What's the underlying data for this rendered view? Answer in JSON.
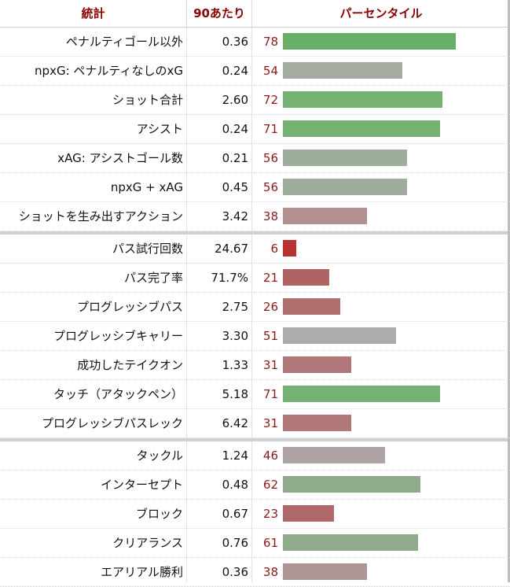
{
  "header": {
    "stat_label": "統計",
    "per90_label": "90あたり",
    "percentile_label": "パーセンタイル"
  },
  "chart_data": {
    "type": "bar",
    "orientation": "horizontal",
    "xlim": [
      0,
      100
    ],
    "groups": [
      {
        "rows": [
          {
            "label": "ペナルティゴール以外",
            "value": "0.36",
            "percentile": 78,
            "color": "#6aaf69"
          },
          {
            "label": "npxG: ペナルティなしのxG",
            "value": "0.24",
            "percentile": 54,
            "color": "#a4aba1"
          },
          {
            "label": "ショット合計",
            "value": "2.60",
            "percentile": 72,
            "color": "#76b174"
          },
          {
            "label": "アシスト",
            "value": "0.24",
            "percentile": 71,
            "color": "#76b174"
          },
          {
            "label": "xAG: アシストゴール数",
            "value": "0.21",
            "percentile": 56,
            "color": "#9fae9c"
          },
          {
            "label": "npxG + xAG",
            "value": "0.45",
            "percentile": 56,
            "color": "#9fae9c"
          },
          {
            "label": "ショットを生み出すアクション",
            "value": "3.42",
            "percentile": 38,
            "color": "#b38f8f"
          }
        ]
      },
      {
        "rows": [
          {
            "label": "パス試行回数",
            "value": "24.67",
            "percentile": 6,
            "color": "#b83232"
          },
          {
            "label": "パス完了率",
            "value": "71.7%",
            "percentile": 21,
            "color": "#b06363"
          },
          {
            "label": "プログレッシブパス",
            "value": "2.75",
            "percentile": 26,
            "color": "#b06f6f"
          },
          {
            "label": "プログレッシブキャリー",
            "value": "3.30",
            "percentile": 51,
            "color": "#acacac"
          },
          {
            "label": "成功したテイクオン",
            "value": "1.33",
            "percentile": 31,
            "color": "#b07878"
          },
          {
            "label": "タッチ（アタックペン）",
            "value": "5.18",
            "percentile": 71,
            "color": "#76b174"
          },
          {
            "label": "プログレッシブパスレック",
            "value": "6.42",
            "percentile": 31,
            "color": "#b07878"
          }
        ]
      },
      {
        "rows": [
          {
            "label": "タックル",
            "value": "1.24",
            "percentile": 46,
            "color": "#afa3a3"
          },
          {
            "label": "インターセプト",
            "value": "0.48",
            "percentile": 62,
            "color": "#8fab8c"
          },
          {
            "label": "ブロック",
            "value": "0.67",
            "percentile": 23,
            "color": "#b06868"
          },
          {
            "label": "クリアランス",
            "value": "0.76",
            "percentile": 61,
            "color": "#8fab8c"
          },
          {
            "label": "エアリアル勝利",
            "value": "0.36",
            "percentile": 38,
            "color": "#b09595"
          }
        ]
      }
    ]
  }
}
